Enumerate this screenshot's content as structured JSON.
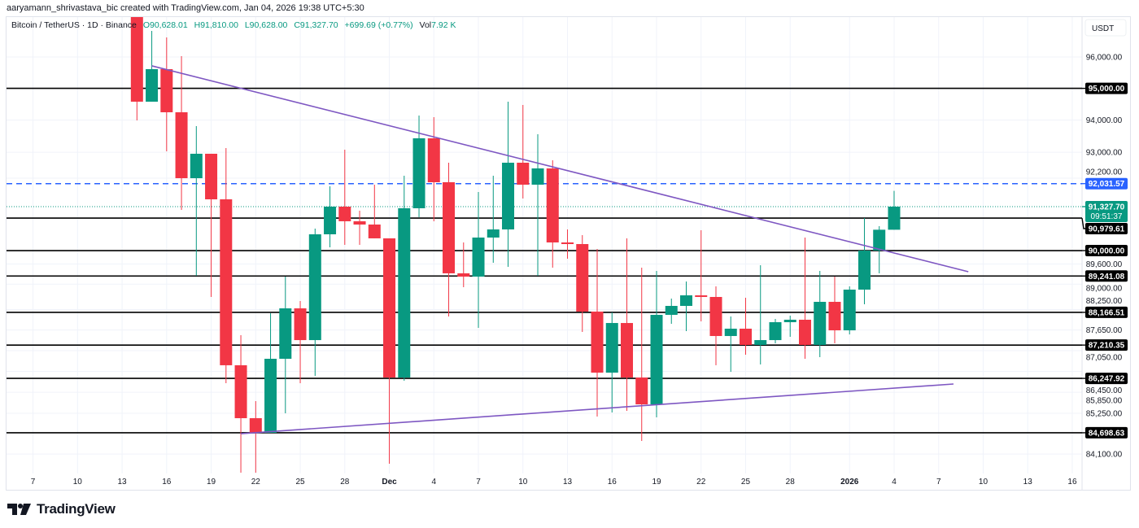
{
  "author_line": "aaryamann_shrivastava_bic created with TradingView.com, Jan 04, 2026 19:38 UTC+5:30",
  "legend": {
    "symbol": "Bitcoin / TetherUS · 1D · Binance",
    "open": "O90,628.01",
    "high": "H91,810.00",
    "low": "L90,628.00",
    "close": "C91,327.70",
    "change": "+699.69 (+0.77%)",
    "volume_label": "Vol",
    "volume": "7.92 K"
  },
  "brand": "TradingView",
  "colors": {
    "up": "#089981",
    "down": "#f23645",
    "level": "#000000",
    "alert": "#2962ff",
    "trendline": "#7e57c2",
    "grid": "#f0f3fa"
  },
  "chart_data": {
    "type": "candlestick",
    "title": "",
    "y_scale": "log",
    "currency": "USDT",
    "xlim": [
      "2025-11-05",
      "2026-01-17"
    ],
    "ylim": [
      83602,
      97310
    ],
    "grid": true,
    "x_ticks": [
      {
        "date": "2025-11-07",
        "label": "7"
      },
      {
        "date": "2025-11-10",
        "label": "10"
      },
      {
        "date": "2025-11-13",
        "label": "13"
      },
      {
        "date": "2025-11-16",
        "label": "16"
      },
      {
        "date": "2025-11-19",
        "label": "19"
      },
      {
        "date": "2025-11-22",
        "label": "22"
      },
      {
        "date": "2025-11-25",
        "label": "25"
      },
      {
        "date": "2025-11-28",
        "label": "28"
      },
      {
        "date": "2025-12-01",
        "label": "Dec"
      },
      {
        "date": "2025-12-04",
        "label": "4"
      },
      {
        "date": "2025-12-07",
        "label": "7"
      },
      {
        "date": "2025-12-10",
        "label": "10"
      },
      {
        "date": "2025-12-13",
        "label": "13"
      },
      {
        "date": "2025-12-16",
        "label": "16"
      },
      {
        "date": "2025-12-19",
        "label": "19"
      },
      {
        "date": "2025-12-22",
        "label": "22"
      },
      {
        "date": "2025-12-25",
        "label": "25"
      },
      {
        "date": "2025-12-28",
        "label": "28"
      },
      {
        "date": "2026-01-01",
        "label": "2026"
      },
      {
        "date": "2026-01-04",
        "label": "4"
      },
      {
        "date": "2026-01-07",
        "label": "7"
      },
      {
        "date": "2026-01-10",
        "label": "10"
      },
      {
        "date": "2026-01-13",
        "label": "13"
      },
      {
        "date": "2026-01-16",
        "label": "16"
      }
    ],
    "y_ticks": [
      "96,000.00",
      "94,000.00",
      "93,000.00",
      "92,200.00",
      "89,600.00",
      "89,000.00",
      "88,250.00",
      "87,650.00",
      "87,050.00",
      "86,450.00",
      "85,850.00",
      "85,250.00",
      "84,100.00"
    ],
    "y_tick_values": [
      96000,
      94000,
      93000,
      92200,
      89600,
      89000,
      88250,
      87650,
      87050,
      86450,
      85850,
      85250,
      84100
    ],
    "candles": [
      {
        "date": "2025-11-14",
        "o": 97310,
        "h": 97800,
        "l": 93991,
        "c": 94579
      },
      {
        "date": "2025-11-15",
        "o": 94579,
        "h": 96836,
        "l": 94579,
        "c": 95610
      },
      {
        "date": "2025-11-16",
        "o": 95610,
        "h": 96627,
        "l": 93028,
        "c": 94246
      },
      {
        "date": "2025-11-17",
        "o": 94246,
        "h": 96026,
        "l": 91229,
        "c": 92198
      },
      {
        "date": "2025-11-18",
        "o": 92198,
        "h": 93813,
        "l": 89247,
        "c": 92952
      },
      {
        "date": "2025-11-19",
        "o": 92952,
        "h": 92952,
        "l": 88620,
        "c": 91551
      },
      {
        "date": "2025-11-20",
        "o": 91551,
        "h": 93129,
        "l": 86109,
        "c": 86626
      },
      {
        "date": "2025-11-21",
        "o": 86626,
        "h": 87497,
        "l": 83556,
        "c": 85111
      },
      {
        "date": "2025-11-22",
        "o": 85111,
        "h": 85597,
        "l": 83556,
        "c": 84696
      },
      {
        "date": "2025-11-23",
        "o": 84696,
        "h": 88141,
        "l": 84696,
        "c": 86813
      },
      {
        "date": "2025-11-24",
        "o": 86813,
        "h": 89223,
        "l": 85249,
        "c": 88284
      },
      {
        "date": "2025-11-25",
        "o": 88284,
        "h": 88500,
        "l": 86109,
        "c": 87355
      },
      {
        "date": "2025-11-26",
        "o": 87355,
        "h": 90662,
        "l": 86319,
        "c": 90490
      },
      {
        "date": "2025-11-27",
        "o": 90490,
        "h": 91949,
        "l": 90098,
        "c": 91328
      },
      {
        "date": "2025-11-28",
        "o": 91328,
        "h": 93078,
        "l": 90172,
        "c": 90884
      },
      {
        "date": "2025-11-29",
        "o": 90884,
        "h": 91205,
        "l": 90172,
        "c": 90785
      },
      {
        "date": "2025-11-30",
        "o": 90785,
        "h": 91999,
        "l": 90368,
        "c": 90368
      },
      {
        "date": "2025-12-01",
        "o": 90368,
        "h": 90368,
        "l": 83828,
        "c": 86272
      },
      {
        "date": "2025-12-02",
        "o": 86272,
        "h": 92274,
        "l": 86179,
        "c": 91279
      },
      {
        "date": "2025-12-03",
        "o": 91279,
        "h": 94143,
        "l": 91007,
        "c": 93432
      },
      {
        "date": "2025-12-04",
        "o": 93432,
        "h": 94093,
        "l": 90884,
        "c": 92074
      },
      {
        "date": "2025-12-05",
        "o": 92074,
        "h": 92675,
        "l": 88045,
        "c": 89321
      },
      {
        "date": "2025-12-06",
        "o": 89321,
        "h": 90245,
        "l": 88909,
        "c": 89223
      },
      {
        "date": "2025-12-07",
        "o": 89223,
        "h": 91775,
        "l": 87711,
        "c": 90392
      },
      {
        "date": "2025-12-08",
        "o": 90392,
        "h": 92274,
        "l": 89635,
        "c": 90637
      },
      {
        "date": "2025-12-09",
        "o": 90637,
        "h": 94579,
        "l": 89514,
        "c": 92675
      },
      {
        "date": "2025-12-10",
        "o": 92675,
        "h": 94476,
        "l": 91576,
        "c": 91999
      },
      {
        "date": "2025-12-11",
        "o": 91999,
        "h": 93559,
        "l": 89247,
        "c": 92499
      },
      {
        "date": "2025-12-12",
        "o": 92499,
        "h": 92750,
        "l": 89490,
        "c": 90245
      },
      {
        "date": "2025-12-13",
        "o": 90245,
        "h": 90637,
        "l": 89757,
        "c": 90196
      },
      {
        "date": "2025-12-14",
        "o": 90196,
        "h": 90465,
        "l": 87593,
        "c": 88189
      },
      {
        "date": "2025-12-15",
        "o": 88189,
        "h": 90050,
        "l": 85157,
        "c": 86413
      },
      {
        "date": "2025-12-16",
        "o": 86413,
        "h": 88165,
        "l": 85273,
        "c": 87854
      },
      {
        "date": "2025-12-17",
        "o": 87854,
        "h": 90368,
        "l": 85319,
        "c": 86272
      },
      {
        "date": "2025-12-18",
        "o": 86272,
        "h": 89490,
        "l": 84467,
        "c": 85504
      },
      {
        "date": "2025-12-19",
        "o": 85504,
        "h": 89393,
        "l": 85134,
        "c": 88093
      },
      {
        "date": "2025-12-20",
        "o": 88093,
        "h": 88572,
        "l": 87830,
        "c": 88356
      },
      {
        "date": "2025-12-21",
        "o": 88356,
        "h": 89078,
        "l": 87617,
        "c": 88668
      },
      {
        "date": "2025-12-22",
        "o": 88668,
        "h": 90613,
        "l": 87902,
        "c": 88620
      },
      {
        "date": "2025-12-23",
        "o": 88620,
        "h": 88933,
        "l": 86626,
        "c": 87474
      },
      {
        "date": "2025-12-24",
        "o": 87474,
        "h": 88045,
        "l": 86436,
        "c": 87688
      },
      {
        "date": "2025-12-25",
        "o": 87688,
        "h": 88596,
        "l": 86930,
        "c": 87214
      },
      {
        "date": "2025-12-26",
        "o": 87214,
        "h": 89563,
        "l": 86649,
        "c": 87355
      },
      {
        "date": "2025-12-27",
        "o": 87355,
        "h": 87974,
        "l": 87261,
        "c": 87878
      },
      {
        "date": "2025-12-28",
        "o": 87878,
        "h": 88069,
        "l": 87451,
        "c": 87950
      },
      {
        "date": "2025-12-29",
        "o": 87950,
        "h": 90392,
        "l": 86813,
        "c": 87214
      },
      {
        "date": "2025-12-30",
        "o": 87214,
        "h": 89393,
        "l": 86860,
        "c": 88476
      },
      {
        "date": "2025-12-31",
        "o": 88476,
        "h": 89223,
        "l": 87261,
        "c": 87640
      },
      {
        "date": "2026-01-01",
        "o": 87640,
        "h": 88933,
        "l": 87521,
        "c": 88837
      },
      {
        "date": "2026-01-02",
        "o": 88837,
        "h": 90982,
        "l": 88404,
        "c": 90000
      },
      {
        "date": "2026-01-03",
        "o": 90000,
        "h": 90736,
        "l": 89321,
        "c": 90628
      },
      {
        "date": "2026-01-04",
        "o": 90628.01,
        "h": 91810,
        "l": 90628,
        "c": 91327.7
      }
    ],
    "horizontal_levels": [
      {
        "value": 95000,
        "label": "95,000.00"
      },
      {
        "value": 90979.61,
        "label": "90,979.61"
      },
      {
        "value": 90000,
        "label": "90,000.00"
      },
      {
        "value": 89241.08,
        "label": "89,241.08"
      },
      {
        "value": 88166.51,
        "label": "88,166.51"
      },
      {
        "value": 87210.35,
        "label": "87,210.35"
      },
      {
        "value": 86247.92,
        "label": "86,247.92"
      },
      {
        "value": 84698.63,
        "label": "84,698.63"
      }
    ],
    "alert_level": {
      "value": 92031.57,
      "label": "92,031.57"
    },
    "last_price": {
      "value": 91327.7,
      "label": "91,327.70",
      "countdown": "09:51:37"
    },
    "trendlines": [
      {
        "from": {
          "date": "2025-11-15",
          "price": 95716
        },
        "to": {
          "date": "2026-01-09",
          "price": 89369
        }
      },
      {
        "from": {
          "date": "2025-11-21",
          "price": 84673
        },
        "to": {
          "date": "2026-01-08",
          "price": 86086
        }
      }
    ]
  }
}
